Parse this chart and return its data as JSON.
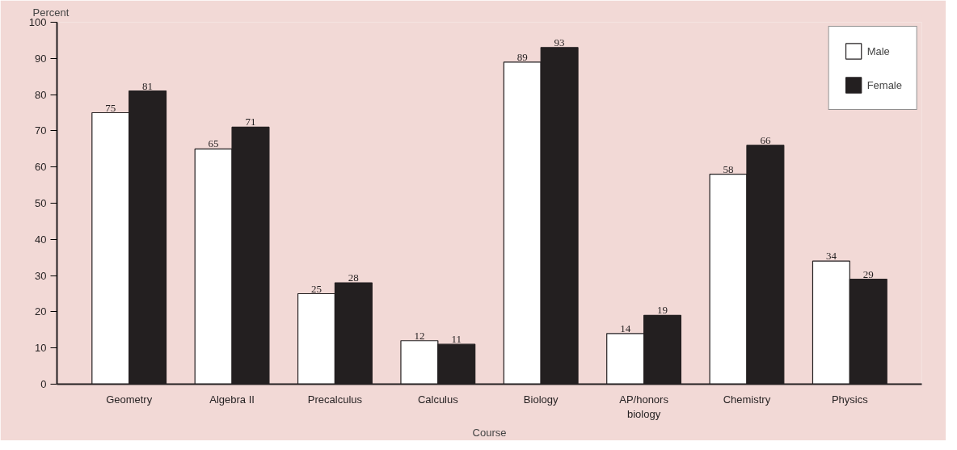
{
  "chart_data": {
    "type": "bar",
    "xlabel": "Course",
    "ylabel": "Percent",
    "categories": [
      "Geometry",
      "Algebra II",
      "Precalculus",
      "Calculus",
      "Biology",
      "AP/honors biology",
      "Chemistry",
      "Physics"
    ],
    "series": [
      {
        "name": "Male",
        "color": "#ffffff",
        "values": [
          75,
          65,
          25,
          12,
          89,
          14,
          58,
          34
        ]
      },
      {
        "name": "Female",
        "color": "#231f20",
        "values": [
          81,
          71,
          28,
          11,
          93,
          19,
          66,
          29
        ]
      }
    ],
    "ylim": [
      0,
      100
    ],
    "yticks": [
      0,
      10,
      20,
      30,
      40,
      50,
      60,
      70,
      80,
      90,
      100
    ],
    "data_labels": true,
    "grid": false,
    "legend": "top right"
  }
}
